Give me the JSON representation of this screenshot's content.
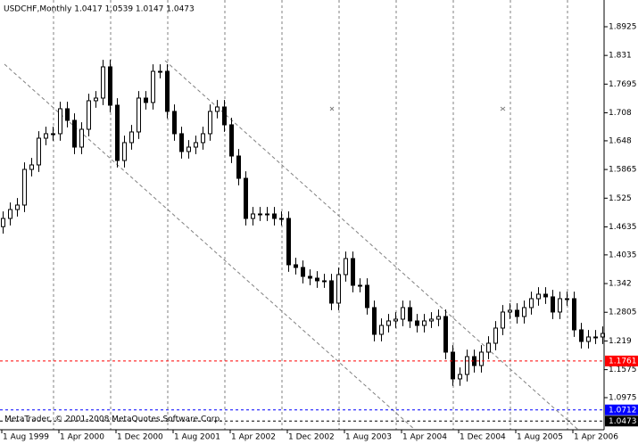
{
  "chart_data": {
    "type": "candlestick",
    "title": "USDCHF,Monthly  1.0417 1.0539 1.0147 1.0473",
    "footer": "MetaTrader, © 2001-2008 MetaQuotes Software Corp.",
    "categories": [
      "1 Aug 1999",
      null,
      null,
      null,
      null,
      null,
      null,
      null,
      "1 Apr 2000",
      null,
      null,
      null,
      null,
      null,
      null,
      null,
      "1 Dec 2000",
      null,
      null,
      null,
      null,
      null,
      null,
      null,
      "1 Aug 2001",
      null,
      null,
      null,
      null,
      null,
      null,
      null,
      "1 Apr 2002",
      null,
      null,
      null,
      null,
      null,
      null,
      null,
      "1 Dec 2002",
      null,
      null,
      null,
      null,
      null,
      null,
      null,
      "1 Aug 2003",
      null,
      null,
      null,
      null,
      null,
      null,
      null,
      "1 Apr 2004",
      null,
      null,
      null,
      null,
      null,
      null,
      null,
      "1 Dec 2004",
      null,
      null,
      null,
      null,
      null,
      null,
      null,
      "1 Aug 2005",
      null,
      null,
      null,
      null,
      null,
      null,
      null,
      "1 Apr 2006",
      null,
      null,
      null,
      null
    ],
    "open": [
      1.464,
      1.4816,
      1.5007,
      1.5103,
      1.5867,
      1.5963,
      1.6536,
      1.6632,
      1.6632,
      1.7167,
      1.6918,
      1.6345,
      1.6727,
      1.7339,
      1.7396,
      1.8065,
      1.7243,
      1.6058,
      1.6441,
      1.667,
      1.7396,
      1.7301,
      1.7969,
      1.7969,
      1.711,
      1.6632,
      1.625,
      1.6345,
      1.6441,
      1.6632,
      1.711,
      1.7205,
      1.6823,
      1.6154,
      1.5676,
      1.4816,
      1.4912,
      1.4912,
      1.4912,
      1.4816,
      1.4816,
      1.3823,
      1.3765,
      1.3574,
      1.3536,
      1.3479,
      1.3479,
      1.3001,
      1.3612,
      1.3956,
      1.3383,
      1.3383,
      1.2905,
      1.2332,
      1.2523,
      1.2619,
      1.2657,
      1.2905,
      1.2619,
      1.2523,
      1.2619,
      1.2657,
      1.2714,
      1.195,
      1.1377,
      1.1472,
      1.1854,
      1.1663,
      1.195,
      1.2141,
      1.2466,
      1.281,
      1.2848,
      1.2714,
      1.2905,
      1.3096,
      1.3192,
      1.3135,
      1.281,
      1.3096,
      1.3096,
      1.2428,
      1.2179,
      1.2275,
      1.2275
    ],
    "high": [
      1.4966,
      1.5157,
      1.5253,
      1.6017,
      1.6113,
      1.6686,
      1.6782,
      1.6782,
      1.7317,
      1.7317,
      1.7068,
      1.6877,
      1.7489,
      1.7546,
      1.8215,
      1.8215,
      1.7393,
      1.6591,
      1.682,
      1.7546,
      1.7546,
      1.8119,
      1.8119,
      1.8119,
      1.726,
      1.6782,
      1.6495,
      1.6591,
      1.6782,
      1.726,
      1.7355,
      1.7355,
      1.6973,
      1.6304,
      1.5826,
      1.5062,
      1.5062,
      1.5062,
      1.5062,
      1.4966,
      1.4966,
      1.3973,
      1.3915,
      1.3724,
      1.3686,
      1.3629,
      1.3629,
      1.3762,
      1.4106,
      1.4106,
      1.3533,
      1.3533,
      1.3055,
      1.2673,
      1.2769,
      1.2807,
      1.3055,
      1.3055,
      1.2769,
      1.2769,
      1.2807,
      1.2864,
      1.2864,
      1.21,
      1.1622,
      1.2004,
      1.2004,
      1.21,
      1.2291,
      1.2616,
      1.296,
      1.2998,
      1.2998,
      1.3055,
      1.3246,
      1.3342,
      1.3342,
      1.3285,
      1.3246,
      1.3246,
      1.3246,
      1.2578,
      1.2425,
      1.2425,
      1.2501
    ],
    "low": [
      1.449,
      1.4666,
      1.4857,
      1.4953,
      1.5717,
      1.5813,
      1.6386,
      1.6482,
      1.6482,
      1.6768,
      1.6195,
      1.6195,
      1.6577,
      1.7189,
      1.7246,
      1.7093,
      1.5908,
      1.5908,
      1.6291,
      1.652,
      1.7151,
      1.7151,
      1.7819,
      1.696,
      1.6482,
      1.61,
      1.61,
      1.6195,
      1.6291,
      1.6482,
      1.696,
      1.6673,
      1.6004,
      1.5526,
      1.4666,
      1.4666,
      1.4762,
      1.4762,
      1.4666,
      1.4666,
      1.3673,
      1.3615,
      1.3424,
      1.3386,
      1.3329,
      1.3329,
      1.2851,
      1.2851,
      1.3462,
      1.3233,
      1.3233,
      1.2755,
      1.2182,
      1.2182,
      1.2373,
      1.2469,
      1.2507,
      1.2469,
      1.2373,
      1.2373,
      1.2469,
      1.2507,
      1.18,
      1.1227,
      1.1227,
      1.1322,
      1.1513,
      1.1513,
      1.18,
      1.1991,
      1.2316,
      1.266,
      1.2564,
      1.2564,
      1.2755,
      1.2946,
      1.2985,
      1.266,
      1.266,
      1.2946,
      1.2278,
      1.2029,
      1.2029,
      1.2125,
      1.2125
    ],
    "close": [
      1.4816,
      1.5007,
      1.5103,
      1.5867,
      1.5963,
      1.6536,
      1.6632,
      1.6632,
      1.7167,
      1.6918,
      1.6345,
      1.6727,
      1.7339,
      1.7396,
      1.8065,
      1.7243,
      1.6058,
      1.6441,
      1.667,
      1.7396,
      1.7301,
      1.7969,
      1.7969,
      1.711,
      1.6632,
      1.625,
      1.6345,
      1.6441,
      1.6632,
      1.711,
      1.7205,
      1.6823,
      1.6154,
      1.5676,
      1.4816,
      1.4912,
      1.4912,
      1.4912,
      1.4816,
      1.4816,
      1.3823,
      1.3765,
      1.3574,
      1.3536,
      1.3479,
      1.3479,
      1.3001,
      1.3612,
      1.3956,
      1.3383,
      1.3383,
      1.2905,
      1.2332,
      1.2523,
      1.2619,
      1.2657,
      1.2905,
      1.2619,
      1.2523,
      1.2619,
      1.2657,
      1.2714,
      1.195,
      1.1377,
      1.1472,
      1.1854,
      1.1663,
      1.195,
      1.2141,
      1.2466,
      1.281,
      1.2848,
      1.2714,
      1.2905,
      1.3096,
      1.3192,
      1.3135,
      1.281,
      1.3096,
      1.3096,
      1.2428,
      1.2179,
      1.2275,
      1.2275,
      1.2351
    ],
    "bull_color": "#ffffff",
    "bear_color": "#000000",
    "outline_color": "#000000",
    "ylim": [
      1.0287,
      1.9498
    ],
    "yticks": [
      1.8925,
      1.831,
      1.7695,
      1.708,
      1.648,
      1.5865,
      1.525,
      1.4635,
      1.4035,
      1.342,
      1.2805,
      1.219,
      1.1575,
      1.0975
    ],
    "grid": true,
    "levels": [
      {
        "value": 1.1761,
        "color": "#ff0000"
      },
      {
        "value": 1.0712,
        "color": "#0000ff"
      },
      {
        "value": 1.0473,
        "color": "#000000"
      }
    ]
  }
}
